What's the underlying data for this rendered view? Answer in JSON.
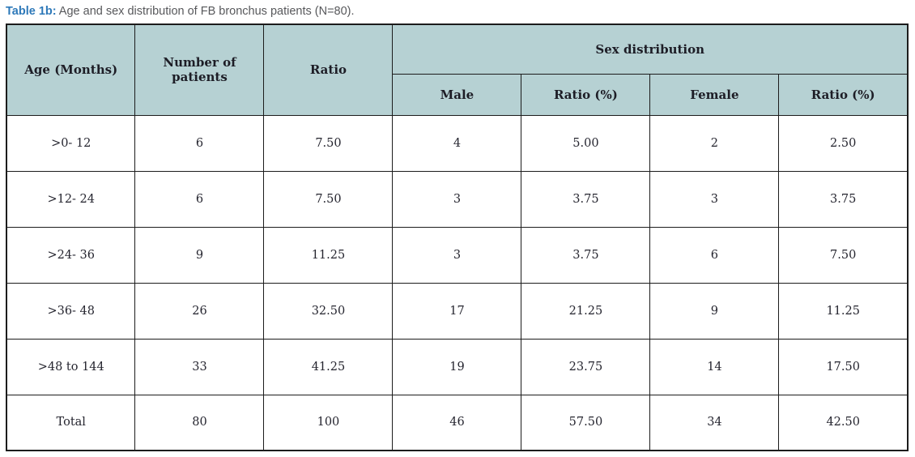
{
  "caption": {
    "label": "Table 1b:",
    "text": " Age and sex distribution of FB bronchus patients (N=80)."
  },
  "colors": {
    "header_bg": "#b6d1d3",
    "caption_label": "#2e79b9",
    "caption_text": "#57585b",
    "border": "#1c1c1c",
    "cell_text": "#25252f"
  },
  "table": {
    "headers": {
      "age": "Age (Months)",
      "patients": "Number of patients",
      "ratio": "Ratio",
      "sex_distribution": "Sex distribution",
      "male": "Male",
      "male_ratio": "Ratio (%)",
      "female": "Female",
      "female_ratio": "Ratio (%)"
    },
    "rows": [
      {
        "age": ">0- 12",
        "patients": "6",
        "ratio": "7.50",
        "male": "4",
        "male_ratio": "5.00",
        "female": "2",
        "female_ratio": "2.50"
      },
      {
        "age": ">12- 24",
        "patients": "6",
        "ratio": "7.50",
        "male": "3",
        "male_ratio": "3.75",
        "female": "3",
        "female_ratio": "3.75"
      },
      {
        "age": ">24- 36",
        "patients": "9",
        "ratio": "11.25",
        "male": "3",
        "male_ratio": "3.75",
        "female": "6",
        "female_ratio": "7.50"
      },
      {
        "age": ">36- 48",
        "patients": "26",
        "ratio": "32.50",
        "male": "17",
        "male_ratio": "21.25",
        "female": "9",
        "female_ratio": "11.25"
      },
      {
        "age": ">48 to 144",
        "patients": "33",
        "ratio": "41.25",
        "male": "19",
        "male_ratio": "23.75",
        "female": "14",
        "female_ratio": "17.50"
      },
      {
        "age": "Total",
        "patients": "80",
        "ratio": "100",
        "male": "46",
        "male_ratio": "57.50",
        "female": "34",
        "female_ratio": "42.50"
      }
    ]
  }
}
